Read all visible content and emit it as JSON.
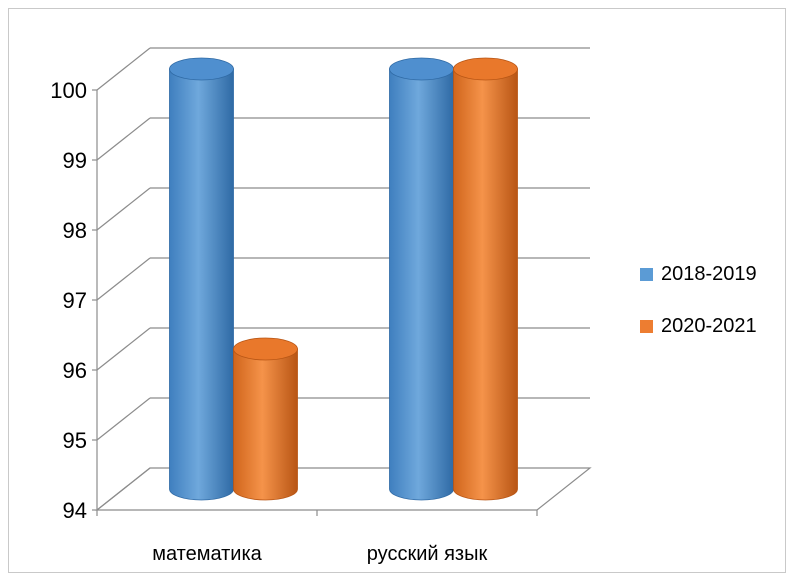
{
  "chart_data": {
    "type": "bar",
    "style": "3d-cylinder",
    "categories": [
      "математика",
      "русский язык"
    ],
    "series": [
      {
        "name": "2018-2019",
        "values": [
          100,
          100
        ],
        "color": "#5b9bd5"
      },
      {
        "name": "2020-2021",
        "values": [
          96,
          100
        ],
        "color": "#ed7d31"
      }
    ],
    "ylim": [
      94,
      100
    ],
    "yticks": [
      "94",
      "95",
      "96",
      "97",
      "98",
      "99",
      "100"
    ],
    "grid": true,
    "legend_position": "right"
  }
}
